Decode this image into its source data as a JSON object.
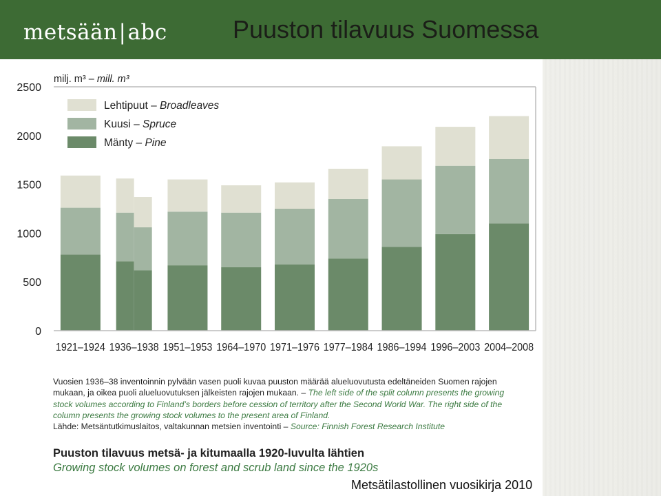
{
  "header": {
    "logo_text_left": "metsään",
    "logo_separator": "|",
    "logo_text_right": "abc",
    "slide_title": "Puuston tilavuus Suomessa"
  },
  "colors": {
    "header_bg": "#3d6b34",
    "broadleaves": "#e0e0d2",
    "spruce": "#a2b5a2",
    "pine": "#6b8a69",
    "english_text": "#3b7a41"
  },
  "chart_data": {
    "type": "bar",
    "stacked": true,
    "unit_label_fi": "milj. m³ –",
    "unit_label_en": "mill. m³",
    "ylim": [
      0,
      2500
    ],
    "yticks": [
      "0",
      "500",
      "1000",
      "1500",
      "2000",
      "2500"
    ],
    "grid": false,
    "legend_position": "top-left",
    "legend": [
      {
        "fi": "Lehtipuut –",
        "en": "Broadleaves",
        "color": "#e0e0d2"
      },
      {
        "fi": "Kuusi –",
        "en": "Spruce",
        "color": "#a2b5a2"
      },
      {
        "fi": "Mänty –",
        "en": "Pine",
        "color": "#6b8a69"
      }
    ],
    "categories": [
      "1921–1924",
      "1936–1938",
      "1951–1953",
      "1964–1970",
      "1971–1976",
      "1977–1984",
      "1986–1994",
      "1996–2003",
      "2004–2008"
    ],
    "series": [
      {
        "name": "Mänty – Pine",
        "color": "#6b8a69"
      },
      {
        "name": "Kuusi – Spruce",
        "color": "#a2b5a2"
      },
      {
        "name": "Lehtipuut – Broadleaves",
        "color": "#e0e0d2"
      }
    ],
    "bars": [
      {
        "category": "1921–1924",
        "pine": 780,
        "spruce": 480,
        "broadleaves": 330
      },
      {
        "category": "1936–1938",
        "part": "left",
        "pine": 710,
        "spruce": 500,
        "broadleaves": 350
      },
      {
        "category": "1936–1938",
        "part": "right",
        "pine": 620,
        "spruce": 440,
        "broadleaves": 310
      },
      {
        "category": "1951–1953",
        "pine": 670,
        "spruce": 550,
        "broadleaves": 330
      },
      {
        "category": "1964–1970",
        "pine": 650,
        "spruce": 560,
        "broadleaves": 280
      },
      {
        "category": "1971–1976",
        "pine": 680,
        "spruce": 570,
        "broadleaves": 270
      },
      {
        "category": "1977–1984",
        "pine": 740,
        "spruce": 610,
        "broadleaves": 310
      },
      {
        "category": "1986–1994",
        "pine": 860,
        "spruce": 690,
        "broadleaves": 340
      },
      {
        "category": "1996–2003",
        "pine": 990,
        "spruce": 700,
        "broadleaves": 400
      },
      {
        "category": "2004–2008",
        "pine": 1100,
        "spruce": 660,
        "broadleaves": 440
      }
    ]
  },
  "note": {
    "fi": "Vuosien 1936–38 inventoinnin pylvään vasen puoli kuvaa puuston määrää alueluovutusta edeltäneiden Suomen rajojen mukaan, ja oikea puoli alueluovutuksen jälkeisten rajojen mukaan. –",
    "en": "The left side of the split column presents the growing stock volumes according to Finland’s borders before cession of territory after the Second World War. The right side of the column presents the growing stock volumes to the present area of Finland.",
    "source_fi": "Lähde: Metsäntutkimuslaitos, valtakunnan metsien inventointi –",
    "source_en": "Source: Finnish Forest Research Institute"
  },
  "caption": {
    "fi": "Puuston tilavuus metsä- ja kitumaalla 1920-luvulta lähtien",
    "en": "Growing stock volumes on forest and scrub land since the 1920s"
  },
  "footer_source": "Metsätilastollinen vuosikirja 2010"
}
